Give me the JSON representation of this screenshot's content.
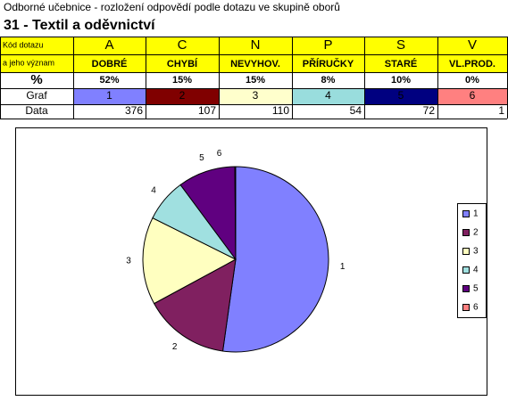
{
  "header": {
    "subtitle": "Odborné učebnice - rozložení odpovědí podle dotazu ve skupině oborů",
    "title": "31 - Textil a oděvnictví"
  },
  "table": {
    "code_label": [
      "Kód dotazu",
      "a jeho význam"
    ],
    "percent_label": "%",
    "graph_label": "Graf",
    "data_label": "Data",
    "columns": [
      {
        "code": "A",
        "label": "DOBRÉ",
        "percent": "52%",
        "fill": "#8080ff"
      },
      {
        "code": "C",
        "label": "CHYBÍ",
        "percent": "15%",
        "fill": "#800000"
      },
      {
        "code": "N",
        "label": "NEVYHOV.",
        "percent": "15%",
        "fill": "#ffffcc"
      },
      {
        "code": "P",
        "label": "PŘÍRUČKY",
        "percent": "8%",
        "fill": "#99dddd"
      },
      {
        "code": "S",
        "label": "STARÉ",
        "percent": "10%",
        "fill": "#000080"
      },
      {
        "code": "V",
        "label": "VL.PROD.",
        "percent": "0%",
        "fill": "#ff8080"
      }
    ]
  },
  "chart_data": {
    "type": "pie",
    "categories": [
      "1",
      "2",
      "3",
      "4",
      "5",
      "6"
    ],
    "values": [
      376,
      107,
      110,
      54,
      72,
      1
    ],
    "colors": [
      "#8080ff",
      "#802060",
      "#ffffc0",
      "#a0e0e0",
      "#600080",
      "#ff8080"
    ],
    "legend": "right"
  }
}
